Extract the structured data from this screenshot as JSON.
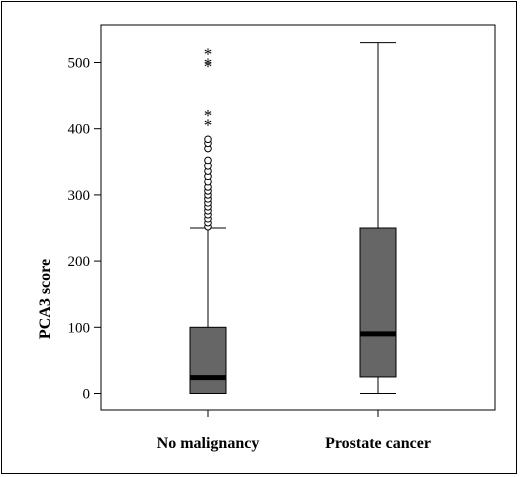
{
  "chart_data": {
    "type": "boxplot",
    "xlabel": "",
    "ylabel": "PCA3 score",
    "ylim": [
      -25,
      555
    ],
    "yticks": [
      0,
      100,
      200,
      300,
      400,
      500
    ],
    "grid": false,
    "categories": [
      "No malignancy",
      "Prostate cancer"
    ],
    "boxes": [
      {
        "category": "No malignancy",
        "min": 0,
        "q1": 0,
        "median": 24,
        "q3": 100,
        "whisker_high": 250,
        "outliers_circle": [
          252,
          258,
          264,
          270,
          276,
          282,
          288,
          294,
          300,
          306,
          312,
          320,
          328,
          336,
          344,
          352,
          370,
          378,
          384
        ],
        "outliers_extreme": [
          408,
          422,
          496,
          500,
          515
        ]
      },
      {
        "category": "Prostate cancer",
        "min": 0,
        "q1": 25,
        "median": 90,
        "q3": 250,
        "whisker_high": 530,
        "outliers_circle": [],
        "outliers_extreme": []
      }
    ],
    "colors": {
      "box_fill": "#666666",
      "median": "#000000",
      "line": "#000000"
    }
  }
}
